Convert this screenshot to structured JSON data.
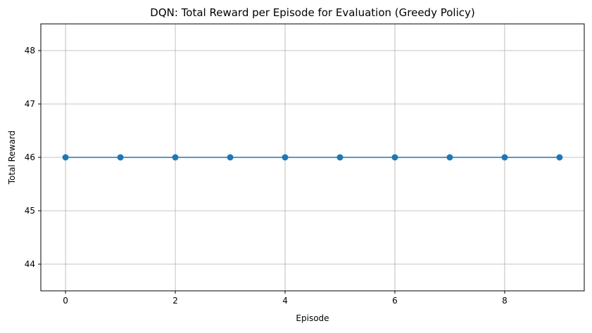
{
  "chart_data": {
    "type": "line",
    "title": "DQN: Total Reward per Episode for Evaluation (Greedy Policy)",
    "xlabel": "Episode",
    "ylabel": "Total Reward",
    "xlim": [
      -0.45,
      9.45
    ],
    "ylim": [
      43.5,
      48.5
    ],
    "xticks": [
      0,
      2,
      4,
      6,
      8
    ],
    "yticks": [
      44,
      45,
      46,
      47,
      48
    ],
    "grid": true,
    "series": [
      {
        "color": "#1f77b4",
        "marker": "circle",
        "x": [
          0,
          1,
          2,
          3,
          4,
          5,
          6,
          7,
          8,
          9
        ],
        "y": [
          46,
          46,
          46,
          46,
          46,
          46,
          46,
          46,
          46,
          46
        ]
      }
    ]
  }
}
